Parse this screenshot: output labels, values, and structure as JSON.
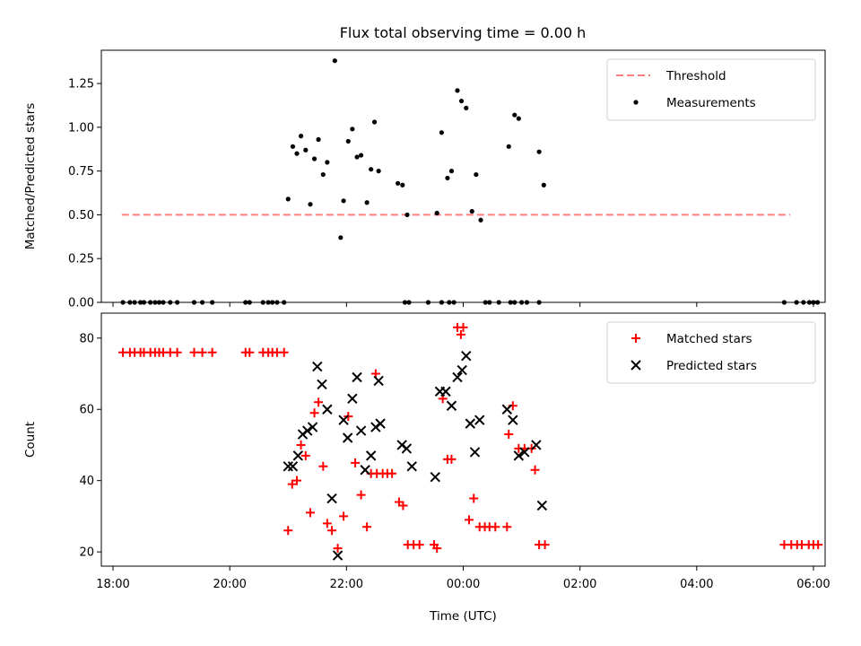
{
  "title": "Flux total observing time = 0.00 h",
  "chart_data": [
    {
      "type": "scatter",
      "ylabel": "Matched/Predicted stars",
      "ylim": [
        0,
        1.44
      ],
      "yticks": [
        "0.00",
        "0.25",
        "0.50",
        "0.75",
        "1.00",
        "1.25"
      ],
      "xlim": [
        -0.2,
        12.2
      ],
      "threshold": {
        "name": "Threshold",
        "y": 0.5,
        "x": [
          0.15,
          11.6
        ],
        "color": "#ff7f7f"
      },
      "legend": [
        "Threshold",
        "Measurements"
      ],
      "legend_position": "top-right",
      "series": [
        {
          "name": "Measurements",
          "color": "#000000",
          "points": [
            [
              0.17,
              0
            ],
            [
              0.29,
              0
            ],
            [
              0.37,
              0
            ],
            [
              0.47,
              0
            ],
            [
              0.53,
              0
            ],
            [
              0.64,
              0
            ],
            [
              0.72,
              0
            ],
            [
              0.79,
              0
            ],
            [
              0.86,
              0
            ],
            [
              0.98,
              0
            ],
            [
              1.1,
              0
            ],
            [
              1.39,
              0
            ],
            [
              1.53,
              0
            ],
            [
              1.7,
              0
            ],
            [
              2.27,
              0
            ],
            [
              2.34,
              0
            ],
            [
              2.57,
              0
            ],
            [
              2.66,
              0
            ],
            [
              2.73,
              0
            ],
            [
              2.81,
              0
            ],
            [
              2.93,
              0
            ],
            [
              5.0,
              0
            ],
            [
              5.07,
              0
            ],
            [
              5.4,
              0
            ],
            [
              5.63,
              0
            ],
            [
              5.76,
              0
            ],
            [
              5.84,
              0
            ],
            [
              6.38,
              0
            ],
            [
              6.45,
              0
            ],
            [
              6.61,
              0
            ],
            [
              6.81,
              0
            ],
            [
              6.88,
              0
            ],
            [
              7.0,
              0
            ],
            [
              7.09,
              0
            ],
            [
              7.3,
              0
            ],
            [
              11.5,
              0
            ],
            [
              11.71,
              0
            ],
            [
              11.83,
              0
            ],
            [
              11.93,
              0
            ],
            [
              12.0,
              0
            ],
            [
              12.07,
              0
            ],
            [
              3.0,
              0.59
            ],
            [
              3.08,
              0.89
            ],
            [
              3.15,
              0.85
            ],
            [
              3.22,
              0.95
            ],
            [
              3.3,
              0.87
            ],
            [
              3.38,
              0.56
            ],
            [
              3.45,
              0.82
            ],
            [
              3.52,
              0.93
            ],
            [
              3.6,
              0.73
            ],
            [
              3.67,
              0.8
            ],
            [
              3.8,
              1.38
            ],
            [
              3.9,
              0.37
            ],
            [
              3.95,
              0.58
            ],
            [
              4.03,
              0.92
            ],
            [
              4.1,
              0.99
            ],
            [
              4.18,
              0.83
            ],
            [
              4.25,
              0.84
            ],
            [
              4.35,
              0.57
            ],
            [
              4.42,
              0.76
            ],
            [
              4.55,
              0.75
            ],
            [
              4.48,
              1.03
            ],
            [
              4.88,
              0.68
            ],
            [
              4.96,
              0.67
            ],
            [
              5.04,
              0.5
            ],
            [
              5.55,
              0.51
            ],
            [
              5.63,
              0.97
            ],
            [
              5.73,
              0.71
            ],
            [
              5.8,
              0.75
            ],
            [
              5.9,
              1.21
            ],
            [
              5.97,
              1.15
            ],
            [
              6.05,
              1.11
            ],
            [
              6.15,
              0.52
            ],
            [
              6.22,
              0.73
            ],
            [
              6.3,
              0.47
            ],
            [
              6.78,
              0.89
            ],
            [
              6.88,
              1.07
            ],
            [
              6.95,
              1.05
            ],
            [
              7.3,
              0.86
            ],
            [
              7.38,
              0.67
            ]
          ]
        }
      ]
    },
    {
      "type": "scatter",
      "ylabel": "Count",
      "xlabel": "Time (UTC)",
      "ylim": [
        16,
        87
      ],
      "yticks": [
        "20",
        "40",
        "60",
        "80"
      ],
      "xlim": [
        -0.2,
        12.2
      ],
      "xticks": [
        {
          "label": "18:00",
          "x": 0
        },
        {
          "label": "20:00",
          "x": 2
        },
        {
          "label": "22:00",
          "x": 4
        },
        {
          "label": "00:00",
          "x": 6
        },
        {
          "label": "02:00",
          "x": 8
        },
        {
          "label": "04:00",
          "x": 10
        },
        {
          "label": "06:00",
          "x": 12
        }
      ],
      "legend": [
        "Matched stars",
        "Predicted stars"
      ],
      "legend_position": "top-right",
      "series": [
        {
          "name": "Matched stars",
          "color": "#ff0000",
          "marker": "plus",
          "points": [
            [
              0.17,
              76
            ],
            [
              0.29,
              76
            ],
            [
              0.37,
              76
            ],
            [
              0.47,
              76
            ],
            [
              0.53,
              76
            ],
            [
              0.64,
              76
            ],
            [
              0.72,
              76
            ],
            [
              0.79,
              76
            ],
            [
              0.86,
              76
            ],
            [
              0.98,
              76
            ],
            [
              1.1,
              76
            ],
            [
              1.39,
              76
            ],
            [
              1.53,
              76
            ],
            [
              1.7,
              76
            ],
            [
              2.27,
              76
            ],
            [
              2.34,
              76
            ],
            [
              2.57,
              76
            ],
            [
              2.66,
              76
            ],
            [
              2.73,
              76
            ],
            [
              2.81,
              76
            ],
            [
              2.93,
              76
            ],
            [
              3.0,
              26
            ],
            [
              3.07,
              39
            ],
            [
              3.15,
              40
            ],
            [
              3.22,
              50
            ],
            [
              3.3,
              47
            ],
            [
              3.38,
              31
            ],
            [
              3.45,
              59
            ],
            [
              3.52,
              62
            ],
            [
              3.6,
              44
            ],
            [
              3.67,
              28
            ],
            [
              3.75,
              26
            ],
            [
              3.85,
              21
            ],
            [
              3.95,
              30
            ],
            [
              4.03,
              58
            ],
            [
              4.15,
              45
            ],
            [
              4.25,
              36
            ],
            [
              4.35,
              27
            ],
            [
              4.42,
              42
            ],
            [
              4.52,
              42
            ],
            [
              4.62,
              42
            ],
            [
              4.7,
              42
            ],
            [
              4.78,
              42
            ],
            [
              4.5,
              70
            ],
            [
              4.9,
              34
            ],
            [
              4.97,
              33
            ],
            [
              5.05,
              22
            ],
            [
              5.15,
              22
            ],
            [
              5.25,
              22
            ],
            [
              5.5,
              22
            ],
            [
              5.55,
              21
            ],
            [
              5.65,
              63
            ],
            [
              5.73,
              46
            ],
            [
              5.8,
              46
            ],
            [
              5.9,
              83
            ],
            [
              6.0,
              83
            ],
            [
              5.96,
              81
            ],
            [
              6.1,
              29
            ],
            [
              6.18,
              35
            ],
            [
              6.28,
              27
            ],
            [
              6.37,
              27
            ],
            [
              6.45,
              27
            ],
            [
              6.55,
              27
            ],
            [
              6.75,
              27
            ],
            [
              6.78,
              53
            ],
            [
              6.85,
              61
            ],
            [
              6.95,
              49
            ],
            [
              7.05,
              49
            ],
            [
              7.17,
              49
            ],
            [
              7.23,
              43
            ],
            [
              7.3,
              22
            ],
            [
              7.4,
              22
            ],
            [
              11.5,
              22
            ],
            [
              11.62,
              22
            ],
            [
              11.72,
              22
            ],
            [
              11.8,
              22
            ],
            [
              11.92,
              22
            ],
            [
              12.0,
              22
            ],
            [
              12.08,
              22
            ]
          ]
        },
        {
          "name": "Predicted stars",
          "color": "#000000",
          "marker": "x",
          "points": [
            [
              3.0,
              44
            ],
            [
              3.08,
              44
            ],
            [
              3.17,
              47
            ],
            [
              3.25,
              53
            ],
            [
              3.33,
              54
            ],
            [
              3.42,
              55
            ],
            [
              3.5,
              72
            ],
            [
              3.58,
              67
            ],
            [
              3.67,
              60
            ],
            [
              3.75,
              35
            ],
            [
              3.85,
              19
            ],
            [
              3.95,
              57
            ],
            [
              4.02,
              52
            ],
            [
              4.1,
              63
            ],
            [
              4.18,
              69
            ],
            [
              4.25,
              54
            ],
            [
              4.32,
              43
            ],
            [
              4.42,
              47
            ],
            [
              4.5,
              55
            ],
            [
              4.58,
              56
            ],
            [
              4.55,
              68
            ],
            [
              4.95,
              50
            ],
            [
              5.03,
              49
            ],
            [
              5.12,
              44
            ],
            [
              5.52,
              41
            ],
            [
              5.6,
              65
            ],
            [
              5.7,
              65
            ],
            [
              5.8,
              61
            ],
            [
              5.9,
              69
            ],
            [
              5.98,
              71
            ],
            [
              6.05,
              75
            ],
            [
              6.12,
              56
            ],
            [
              6.2,
              48
            ],
            [
              6.28,
              57
            ],
            [
              6.75,
              60
            ],
            [
              6.85,
              57
            ],
            [
              6.95,
              47
            ],
            [
              7.05,
              48
            ],
            [
              7.25,
              50
            ],
            [
              7.35,
              33
            ]
          ]
        }
      ]
    }
  ]
}
